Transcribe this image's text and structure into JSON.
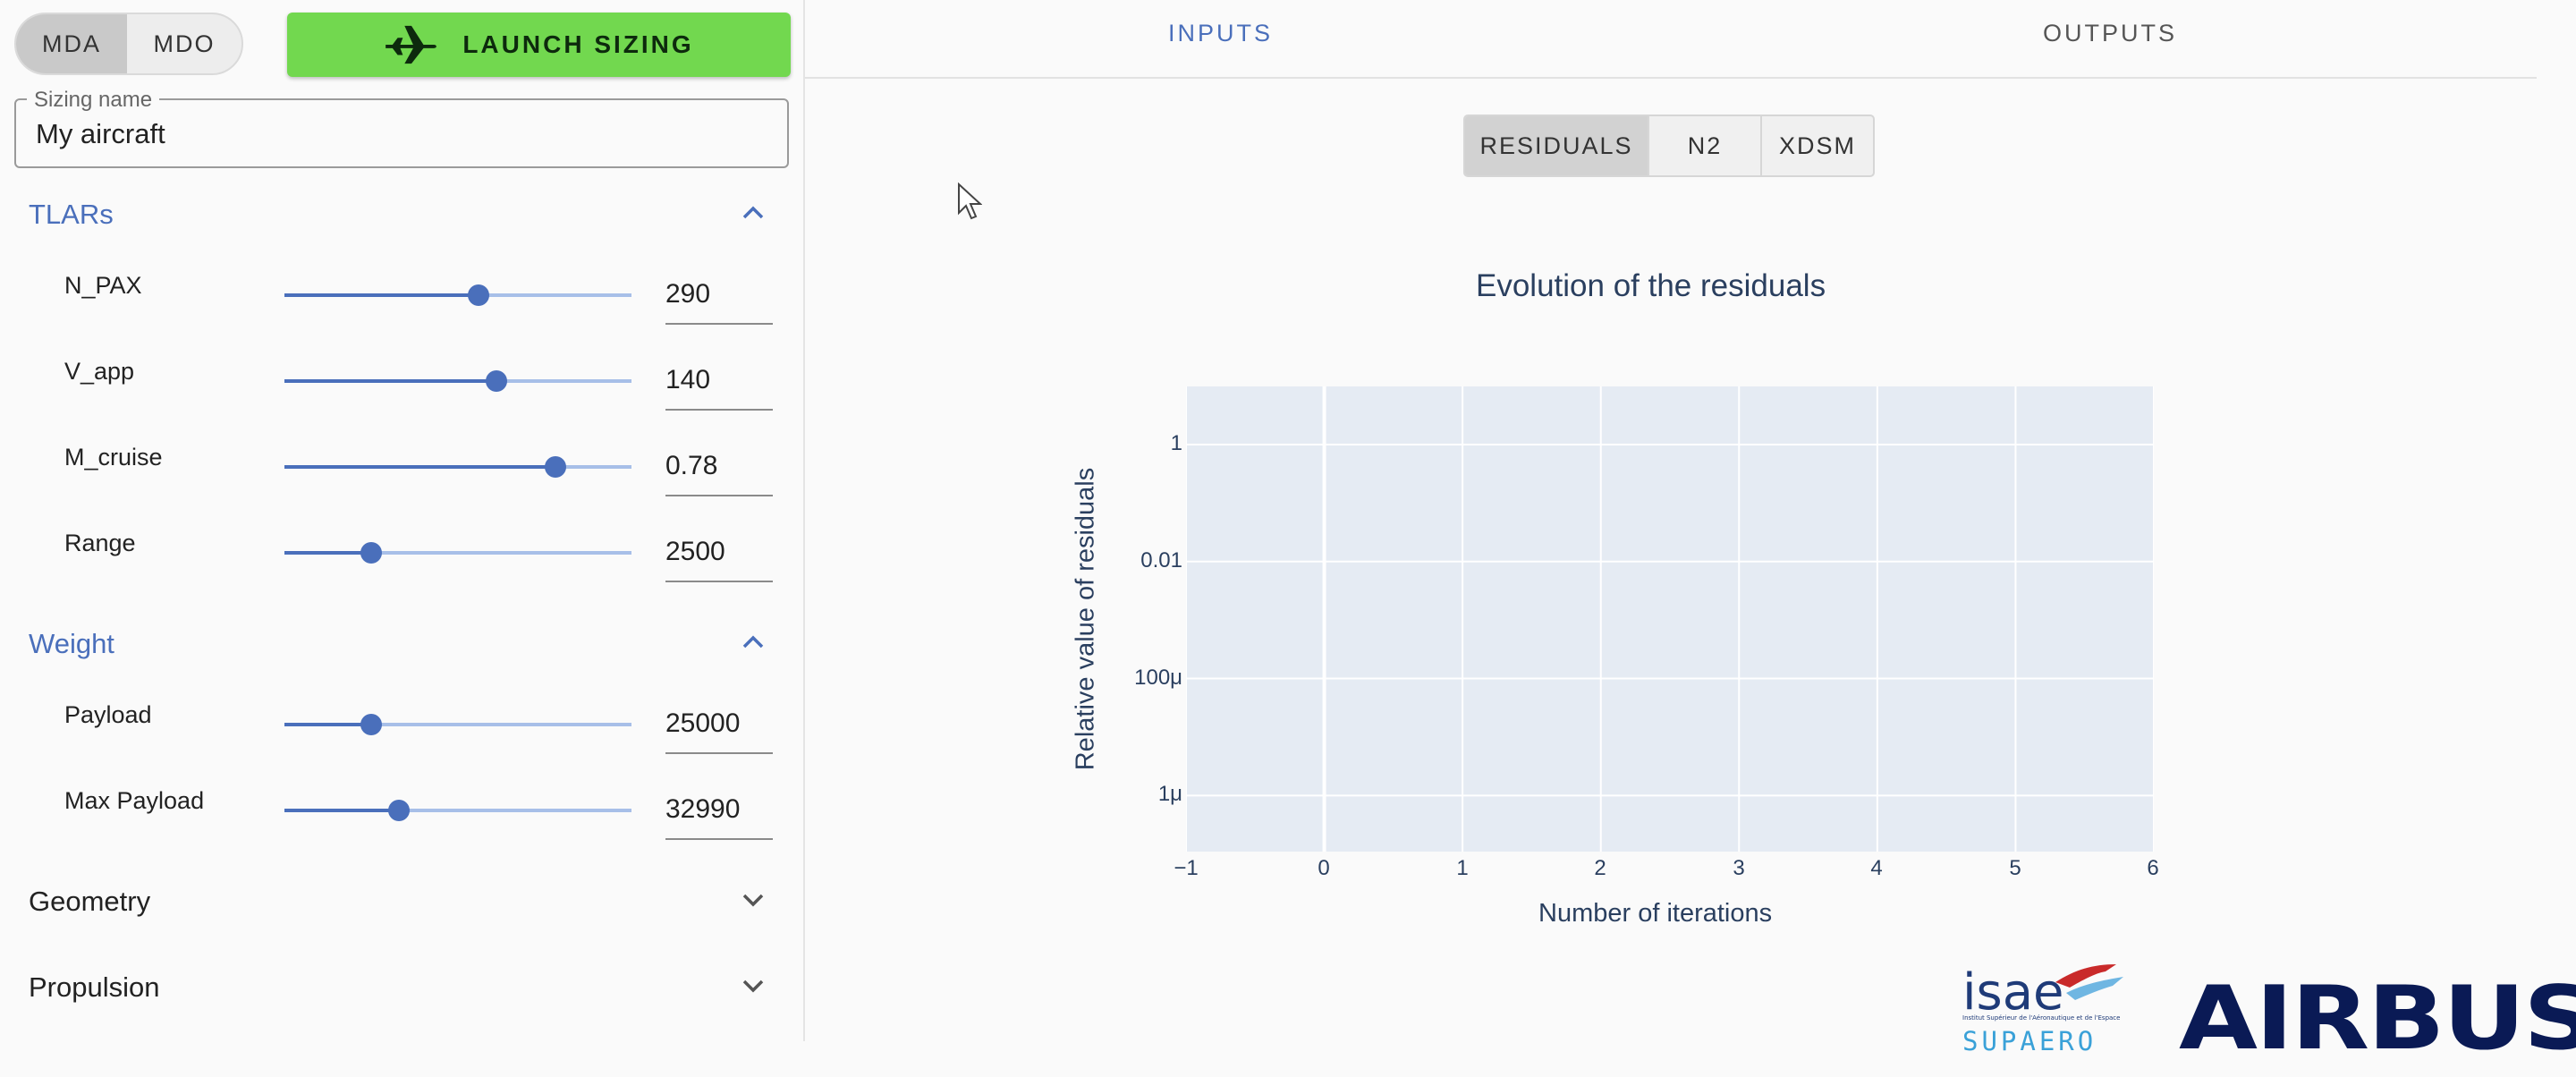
{
  "mode_toggle": {
    "options": [
      "MDA",
      "MDO"
    ],
    "selected": "MDA"
  },
  "launch_button": {
    "label": "LAUNCH SIZING",
    "color": "#72d84f"
  },
  "sizing_name": {
    "label": "Sizing name",
    "value": "My aircraft"
  },
  "sections": {
    "tlars": {
      "title": "TLARs",
      "expanded": true,
      "params": [
        {
          "label": "N_PAX",
          "value": "290",
          "slider_fraction": 0.56
        },
        {
          "label": "V_app",
          "value": "140",
          "slider_fraction": 0.61
        },
        {
          "label": "M_cruise",
          "value": "0.78",
          "slider_fraction": 0.78
        },
        {
          "label": "Range",
          "value": "2500",
          "slider_fraction": 0.25
        }
      ]
    },
    "weight": {
      "title": "Weight",
      "expanded": true,
      "params": [
        {
          "label": "Payload",
          "value": "25000",
          "slider_fraction": 0.25
        },
        {
          "label": "Max Payload",
          "value": "32990",
          "slider_fraction": 0.33
        }
      ]
    },
    "geometry": {
      "title": "Geometry",
      "expanded": false
    },
    "propulsion": {
      "title": "Propulsion",
      "expanded": false
    }
  },
  "tabs": {
    "items": [
      "INPUTS",
      "OUTPUTS"
    ],
    "selected": "INPUTS"
  },
  "view_toggle": {
    "options": [
      "RESIDUALS",
      "N2",
      "XDSM"
    ],
    "selected": "RESIDUALS"
  },
  "chart_data": {
    "type": "line",
    "title": "Evolution of the residuals",
    "xlabel": "Number of iterations",
    "ylabel": "Relative value of residuals",
    "x_ticks": [
      "−1",
      "0",
      "1",
      "2",
      "3",
      "4",
      "5",
      "6"
    ],
    "xlim": [
      -1,
      6
    ],
    "y_scale": "log",
    "y_ticks": [
      "1",
      "0.01",
      "100μ",
      "1μ"
    ],
    "series": [],
    "grid": true,
    "background": "#e5ebf3"
  },
  "logos": {
    "isae": {
      "text": "isae",
      "subtitle": "SUPAERO",
      "fine_print": "Institut Supérieur de l'Aéronautique et de l'Espace"
    },
    "airbus": {
      "text": "AIRBUS"
    }
  },
  "colors": {
    "accent": "#4a6fbb",
    "launch": "#72d84f",
    "chart_text": "#2a3f5f",
    "airbus": "#0a1a55"
  }
}
